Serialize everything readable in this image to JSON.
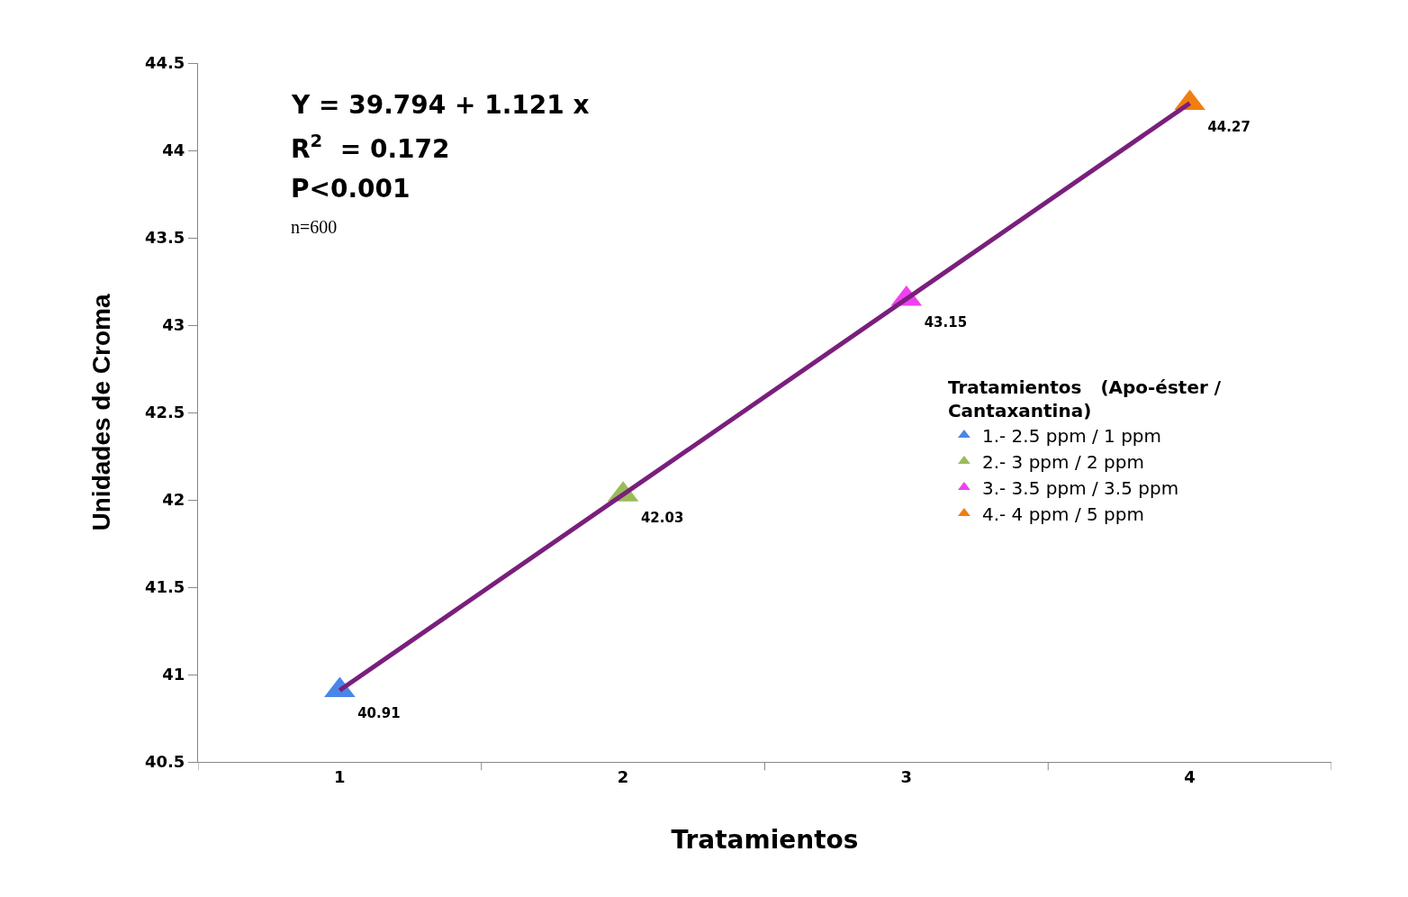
{
  "chart_data": {
    "type": "line",
    "xlabel": "Tratamientos",
    "ylabel": "Unidades de Croma",
    "categories": [
      "1",
      "2",
      "3",
      "4"
    ],
    "ylim": [
      40.5,
      44.5
    ],
    "yticks": [
      40.5,
      41,
      41.5,
      42,
      42.5,
      43,
      43.5,
      44,
      44.5
    ],
    "legend": "right",
    "legend_title": "Tratamientos   (Apo-éster / Cantaxantina)",
    "series": [
      {
        "color": "#7a1f7c",
        "marker": "none",
        "values": [
          40.91,
          42.03,
          43.15,
          44.27
        ]
      },
      {
        "type": "scatter",
        "name": "1.- 2.5 ppm / 1 ppm",
        "color": "#4a86e8",
        "marker": "triangle",
        "values": [
          40.91,
          null,
          null,
          null
        ],
        "value_labels": [
          "40.91",
          null,
          null,
          null
        ]
      },
      {
        "type": "scatter",
        "name": "2.- 3 ppm / 2 ppm",
        "color": "#9bbb59",
        "marker": "triangle",
        "values": [
          null,
          42.03,
          null,
          null
        ],
        "value_labels": [
          null,
          "42.03",
          null,
          null
        ]
      },
      {
        "type": "scatter",
        "name": "3.- 3.5 ppm / 3.5 ppm",
        "color": "#f040f0",
        "marker": "triangle",
        "values": [
          null,
          null,
          43.15,
          null
        ],
        "value_labels": [
          null,
          null,
          "43.15",
          null
        ]
      },
      {
        "type": "scatter",
        "name": "4.- 4 ppm / 5 ppm",
        "color": "#f07f10",
        "marker": "triangle",
        "values": [
          null,
          null,
          null,
          44.27
        ],
        "value_labels": [
          null,
          null,
          null,
          "44.27"
        ]
      }
    ],
    "annotations": [
      "Y = 39.794 + 1.121 x",
      "R$^{2}$  = 0.172",
      "P<0.001",
      "n=600"
    ]
  }
}
